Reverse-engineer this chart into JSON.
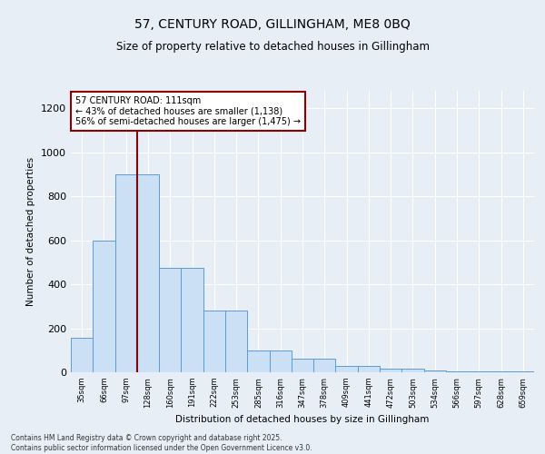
{
  "title_line1": "57, CENTURY ROAD, GILLINGHAM, ME8 0BQ",
  "title_line2": "Size of property relative to detached houses in Gillingham",
  "xlabel": "Distribution of detached houses by size in Gillingham",
  "ylabel": "Number of detached properties",
  "annotation_title": "57 CENTURY ROAD: 111sqm",
  "annotation_line2": "← 43% of detached houses are smaller (1,138)",
  "annotation_line3": "56% of semi-detached houses are larger (1,475) →",
  "categories": [
    "35sqm",
    "66sqm",
    "97sqm",
    "128sqm",
    "160sqm",
    "191sqm",
    "222sqm",
    "253sqm",
    "285sqm",
    "316sqm",
    "347sqm",
    "378sqm",
    "409sqm",
    "441sqm",
    "472sqm",
    "503sqm",
    "534sqm",
    "566sqm",
    "597sqm",
    "628sqm",
    "659sqm"
  ],
  "bar_heights": [
    155,
    600,
    900,
    900,
    475,
    475,
    280,
    280,
    100,
    100,
    60,
    60,
    30,
    30,
    15,
    15,
    10,
    5,
    5,
    5,
    5
  ],
  "bar_color": "#cce0f5",
  "bar_edge_color": "#5b9bd5",
  "vline_color": "#8b0000",
  "vline_position": 2.5,
  "annotation_box_edgecolor": "#8b0000",
  "background_color": "#e8eef5",
  "grid_color": "#ffffff",
  "ylim": [
    0,
    1280
  ],
  "yticks": [
    0,
    200,
    400,
    600,
    800,
    1000,
    1200
  ],
  "footer_line1": "Contains HM Land Registry data © Crown copyright and database right 2025.",
  "footer_line2": "Contains public sector information licensed under the Open Government Licence v3.0."
}
